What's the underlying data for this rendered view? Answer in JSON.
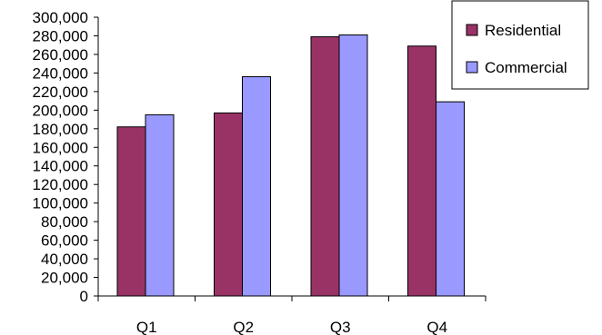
{
  "chart_data": {
    "type": "bar",
    "categories": [
      "Q1",
      "Q2",
      "Q3",
      "Q4"
    ],
    "series": [
      {
        "name": "Residential",
        "values": [
          182000,
          197000,
          279000,
          269000
        ]
      },
      {
        "name": "Commercial",
        "values": [
          195000,
          236000,
          281000,
          209000
        ]
      }
    ],
    "yticks": [
      "0",
      "20,000",
      "40,000",
      "60,000",
      "80,000",
      "100,000",
      "120,000",
      "140,000",
      "160,000",
      "180,000",
      "200,000",
      "220,000",
      "240,000",
      "260,000",
      "280,000",
      "300,000"
    ],
    "ylim": [
      0,
      300000
    ],
    "title": "",
    "xlabel": "",
    "ylabel": "",
    "grid": false,
    "legend": "top-right",
    "colors": {
      "Residential": "#993366",
      "Commercial": "#9999FF"
    }
  }
}
